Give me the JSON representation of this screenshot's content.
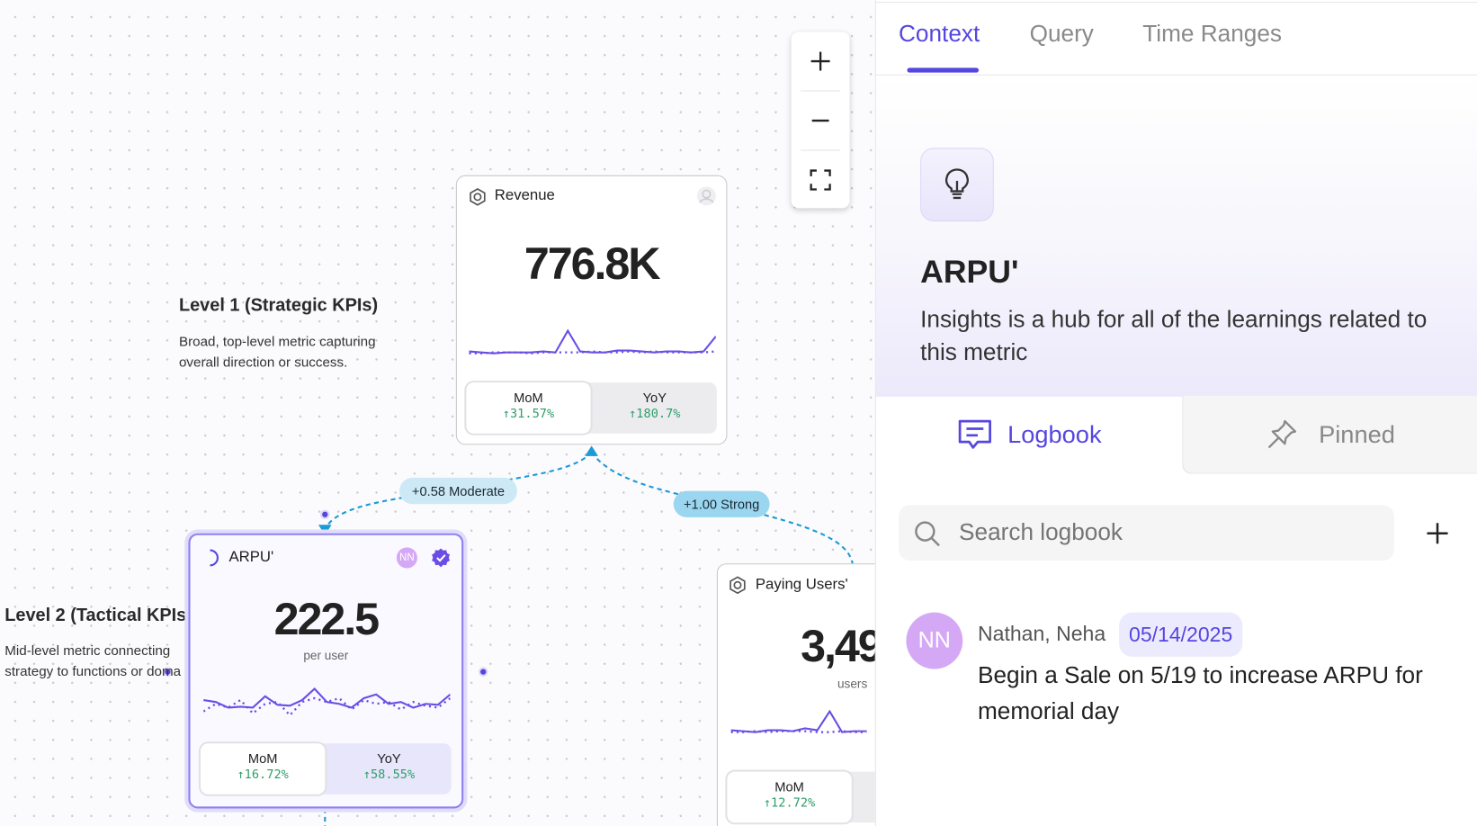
{
  "canvas": {
    "zoom_controls": {
      "zoom_in": "zoom-in-icon",
      "zoom_out": "zoom-out-icon",
      "fit": "fullscreen-icon"
    },
    "levels": [
      {
        "title": "Level 1 (Strategic KPIs)",
        "desc_line1": "Broad, top-level metric capturing",
        "desc_line2": "overall direction or success."
      },
      {
        "title": "Level 2 (Tactical KPIs",
        "desc_line1": "Mid-level metric connecting",
        "desc_line2": "strategy to functions or doma"
      }
    ],
    "edges": [
      {
        "label": "+0.58 Moderate",
        "color": "#cde9f6"
      },
      {
        "label": "+1.00 Strong",
        "color": "#9ad6ef"
      }
    ],
    "cards": {
      "revenue": {
        "title": "Revenue",
        "value": "776.8K",
        "mom_label": "MoM",
        "mom": "↑31.57%",
        "yoy_label": "YoY",
        "yoy": "↑180.7%"
      },
      "arpu": {
        "title": "ARPU'",
        "value": "222.5",
        "unit": "per user",
        "owner": "NN",
        "verified": true,
        "mom_label": "MoM",
        "mom": "↑16.72%",
        "yoy_label": "YoY",
        "yoy": "↑58.55%"
      },
      "paying_users": {
        "title": "Paying Users'",
        "value": "3,49",
        "unit": "users",
        "mom_label": "MoM",
        "mom": "↑12.72%"
      }
    }
  },
  "panel": {
    "tabs": [
      {
        "label": "Context",
        "active": true
      },
      {
        "label": "Query"
      },
      {
        "label": "Time Ranges"
      }
    ],
    "header": {
      "icon": "lightbulb-icon",
      "title": "ARPU'",
      "desc": "Insights is a hub for all of the learnings related to this metric"
    },
    "subtabs": [
      {
        "label": "Logbook",
        "active": true
      },
      {
        "label": "Pinned"
      }
    ],
    "search": {
      "placeholder": "Search logbook",
      "value": ""
    },
    "entries": [
      {
        "initials": "NN",
        "author": "Nathan, Neha",
        "date": "05/14/2025",
        "text": "Begin a Sale on 5/19 to increase ARPU for memorial day"
      }
    ],
    "colors": {
      "accent": "#5546e0",
      "avatar": "#d5a8f6",
      "positive": "#2e9e6a"
    }
  }
}
